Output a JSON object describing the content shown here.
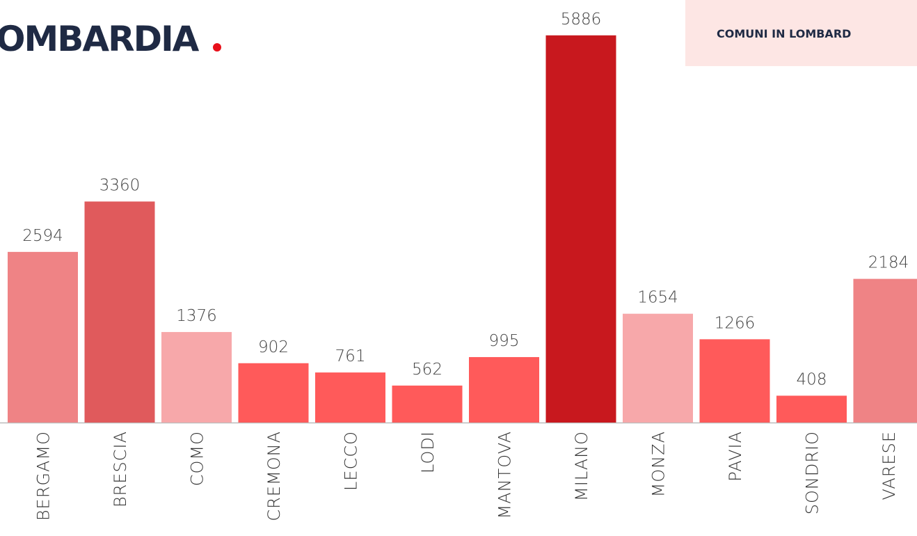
{
  "chart_data": {
    "type": "bar",
    "title": "OMBARDIA",
    "subtitle": "COMUNI IN LOMBARD",
    "categories": [
      "BERGAMO",
      "BRESCIA",
      "COMO",
      "CREMONA",
      "LECCO",
      "LODI",
      "MANTOVA",
      "MILANO",
      "MONZA",
      "PAVIA",
      "SONDRIO",
      "VARESE"
    ],
    "values": [
      2594,
      3360,
      1376,
      902,
      761,
      562,
      995,
      5886,
      1654,
      1266,
      408,
      2184
    ],
    "colors": [
      "#ef8385",
      "#e05a5c",
      "#f7a8aa",
      "#ff5a5a",
      "#ff5a5a",
      "#ff5a5a",
      "#ff5a5a",
      "#c8181e",
      "#f7a8aa",
      "#ff5a5a",
      "#ff5a5a",
      "#ef8385"
    ],
    "ylim": [
      0,
      6000
    ]
  }
}
